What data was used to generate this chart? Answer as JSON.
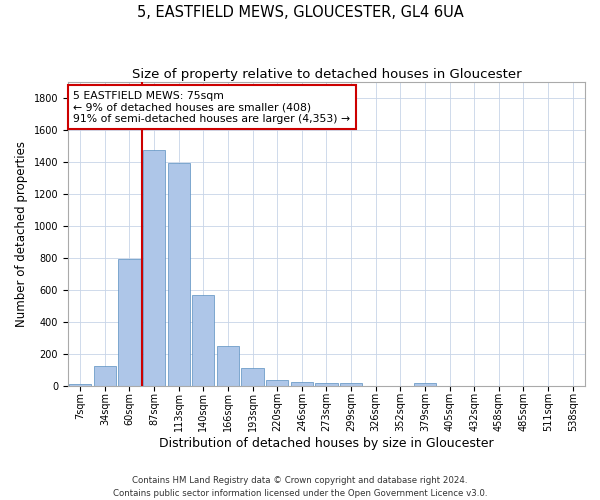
{
  "title": "5, EASTFIELD MEWS, GLOUCESTER, GL4 6UA",
  "subtitle": "Size of property relative to detached houses in Gloucester",
  "xlabel": "Distribution of detached houses by size in Gloucester",
  "ylabel": "Number of detached properties",
  "categories": [
    "7sqm",
    "34sqm",
    "60sqm",
    "87sqm",
    "113sqm",
    "140sqm",
    "166sqm",
    "193sqm",
    "220sqm",
    "246sqm",
    "273sqm",
    "299sqm",
    "326sqm",
    "352sqm",
    "379sqm",
    "405sqm",
    "432sqm",
    "458sqm",
    "485sqm",
    "511sqm",
    "538sqm"
  ],
  "values": [
    10,
    125,
    790,
    1475,
    1390,
    570,
    250,
    110,
    35,
    25,
    20,
    15,
    0,
    0,
    15,
    0,
    0,
    0,
    0,
    0,
    0
  ],
  "bar_color": "#aec6e8",
  "bar_edge_color": "#5a8fc0",
  "vline_x": 2.5,
  "vline_color": "#cc0000",
  "annotation_text": "5 EASTFIELD MEWS: 75sqm\n← 9% of detached houses are smaller (408)\n91% of semi-detached houses are larger (4,353) →",
  "annotation_box_color": "#ffffff",
  "annotation_box_edge": "#cc0000",
  "ylim": [
    0,
    1900
  ],
  "yticks": [
    0,
    200,
    400,
    600,
    800,
    1000,
    1200,
    1400,
    1600,
    1800
  ],
  "footer": "Contains HM Land Registry data © Crown copyright and database right 2024.\nContains public sector information licensed under the Open Government Licence v3.0.",
  "bg_color": "#ffffff",
  "grid_color": "#c8d4e8",
  "title_fontsize": 10.5,
  "subtitle_fontsize": 9.5,
  "xlabel_fontsize": 9,
  "ylabel_fontsize": 8.5,
  "tick_fontsize": 7,
  "annotation_fontsize": 7.8,
  "footer_fontsize": 6.2
}
